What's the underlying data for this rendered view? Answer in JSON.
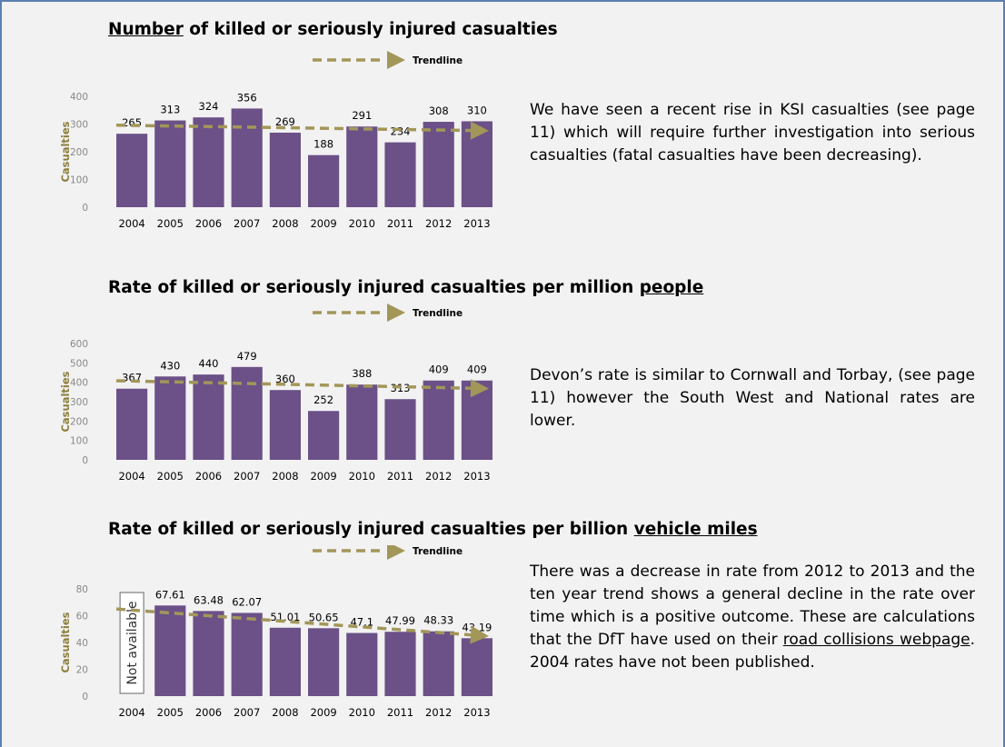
{
  "colors": {
    "bar": "#6b5188",
    "trend": "#a39659",
    "axis_label": "#8a7d3a",
    "tick": "#888888",
    "frame": "#5b7fb0"
  },
  "trend_label": "Trendline",
  "sections": [
    {
      "title_pre": "",
      "title_ul": "Number",
      "title_post": " of killed or seriously injured casualties",
      "description": "We have seen a recent rise in KSI casualties (see page 11) which will require further investigation into serious casualties (fatal casualties have been decreasing).",
      "desc_link": "",
      "desc_post": ""
    },
    {
      "title_pre": "Rate of killed or seriously injured casualties per million ",
      "title_ul": "people",
      "title_post": "",
      "description": "Devon’s rate is similar to Cornwall and Torbay, (see page 11) however the South West and National rates are lower.",
      "desc_link": "",
      "desc_post": ""
    },
    {
      "title_pre": "Rate of killed or seriously injured casualties per billion ",
      "title_ul": "vehicle miles",
      "title_post": "",
      "description": "There was a decrease in rate from 2012 to 2013 and the ten year trend shows a general decline in the rate over time which is a positive outcome. These are calculations that the DfT have used on their ",
      "desc_link": "road collisions webpage",
      "desc_post": ". 2004 rates have not been published."
    }
  ],
  "chart_data": [
    {
      "type": "bar",
      "categories": [
        "2004",
        "2005",
        "2006",
        "2007",
        "2008",
        "2009",
        "2010",
        "2011",
        "2012",
        "2013"
      ],
      "values": [
        265,
        313,
        324,
        356,
        269,
        188,
        291,
        234,
        308,
        310
      ],
      "labels": [
        "265",
        "313",
        "324",
        "356",
        "269",
        "188",
        "291",
        "234",
        "308",
        "310"
      ],
      "ylabel": "Casualties",
      "ylim": [
        0,
        400
      ],
      "yticks": [
        "0",
        "100",
        "200",
        "300",
        "400"
      ],
      "legend": "Trendline",
      "trend": [
        296,
        276
      ],
      "note": ""
    },
    {
      "type": "bar",
      "categories": [
        "2004",
        "2005",
        "2006",
        "2007",
        "2008",
        "2009",
        "2010",
        "2011",
        "2012",
        "2013"
      ],
      "values": [
        367,
        430,
        440,
        479,
        360,
        252,
        388,
        313,
        409,
        409
      ],
      "labels": [
        "367",
        "430",
        "440",
        "479",
        "360",
        "252",
        "388",
        "313",
        "409",
        "409"
      ],
      "ylabel": "Casualties",
      "ylim": [
        0,
        600
      ],
      "yticks": [
        "0",
        "100",
        "200",
        "300",
        "400",
        "500",
        "600"
      ],
      "legend": "Trendline",
      "trend": [
        408,
        368
      ],
      "note": ""
    },
    {
      "type": "bar",
      "categories": [
        "2004",
        "2005",
        "2006",
        "2007",
        "2008",
        "2009",
        "2010",
        "2011",
        "2012",
        "2013"
      ],
      "values": [
        null,
        67.61,
        63.48,
        62.07,
        51.01,
        50.65,
        47.1,
        47.99,
        48.33,
        43.19
      ],
      "labels": [
        "",
        "67.61",
        "63.48",
        "62.07",
        "51.01",
        "50.65",
        "47.1",
        "47.99",
        "48.33",
        "43.19"
      ],
      "ylabel": "Casualties",
      "ylim": [
        0,
        80
      ],
      "yticks": [
        "0",
        "20",
        "40",
        "60",
        "80"
      ],
      "legend": "Trendline",
      "trend": [
        65,
        45
      ],
      "note": "Not available"
    }
  ]
}
